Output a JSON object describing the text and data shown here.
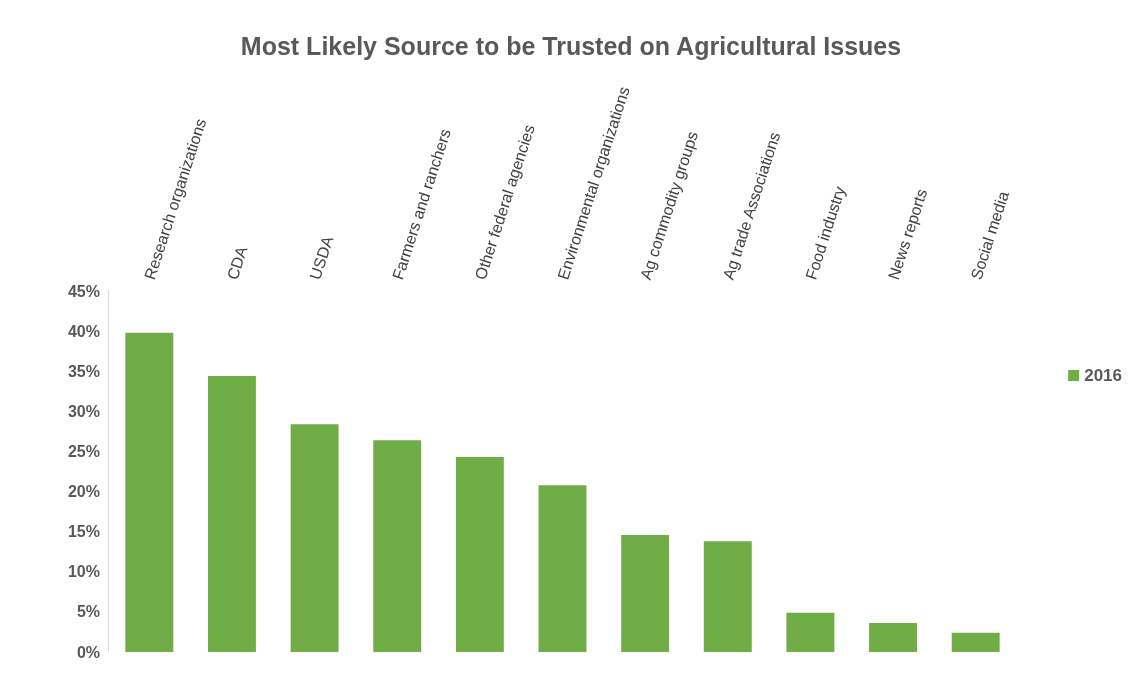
{
  "chart_data": {
    "type": "bar",
    "title": "Most Likely Source to be Trusted on Agricultural Issues",
    "categories": [
      "Research organizations",
      "CDA",
      "USDA",
      "Farmers and ranchers",
      "Other federal agencies",
      "Environmental organizations",
      "Ag commodity groups",
      "Ag trade Associations",
      "Food industry",
      "News reports",
      "Social media"
    ],
    "series": [
      {
        "name": "2016",
        "color": "#70ad47",
        "values": [
          39.8,
          34.4,
          28.4,
          26.4,
          24.3,
          20.8,
          14.6,
          13.8,
          4.9,
          3.6,
          2.4
        ]
      }
    ],
    "ylim": [
      0,
      45
    ],
    "yticks": [
      {
        "value": 0,
        "label": "0%"
      },
      {
        "value": 5,
        "label": "5%"
      },
      {
        "value": 10,
        "label": "10%"
      },
      {
        "value": 15,
        "label": "15%"
      },
      {
        "value": 20,
        "label": "20%"
      },
      {
        "value": 25,
        "label": "25%"
      },
      {
        "value": 30,
        "label": "30%"
      },
      {
        "value": 35,
        "label": "35%"
      },
      {
        "value": 40,
        "label": "40%"
      },
      {
        "value": 45,
        "label": "45%"
      }
    ],
    "grid": false,
    "legend": "right"
  }
}
